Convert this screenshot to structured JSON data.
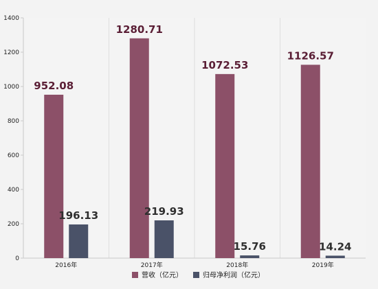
{
  "chart_data": {
    "type": "bar",
    "categories": [
      "2016年",
      "2017年",
      "2018年",
      "2019年"
    ],
    "series": [
      {
        "name": "营收（亿元）",
        "values": [
          952.08,
          1280.71,
          1072.53,
          1126.57
        ],
        "labels": [
          "952.08",
          "1280.71",
          "1072.53",
          "1126.57"
        ],
        "color": "#8c5068",
        "label_color": "#5a1e35"
      },
      {
        "name": "归母净利润（亿元）",
        "values": [
          196.13,
          219.93,
          15.76,
          14.24
        ],
        "labels": [
          "196.13",
          "219.93",
          "15.76",
          "14.24"
        ],
        "color": "#4a5268",
        "label_color": "#2f2f2f"
      }
    ],
    "yticks": [
      "0",
      "200",
      "400",
      "600",
      "800",
      "1000",
      "1200",
      "1400"
    ],
    "ylim": [
      0,
      1400
    ],
    "legend_position": "bottom",
    "grid": true,
    "gridlines": "vertical"
  }
}
